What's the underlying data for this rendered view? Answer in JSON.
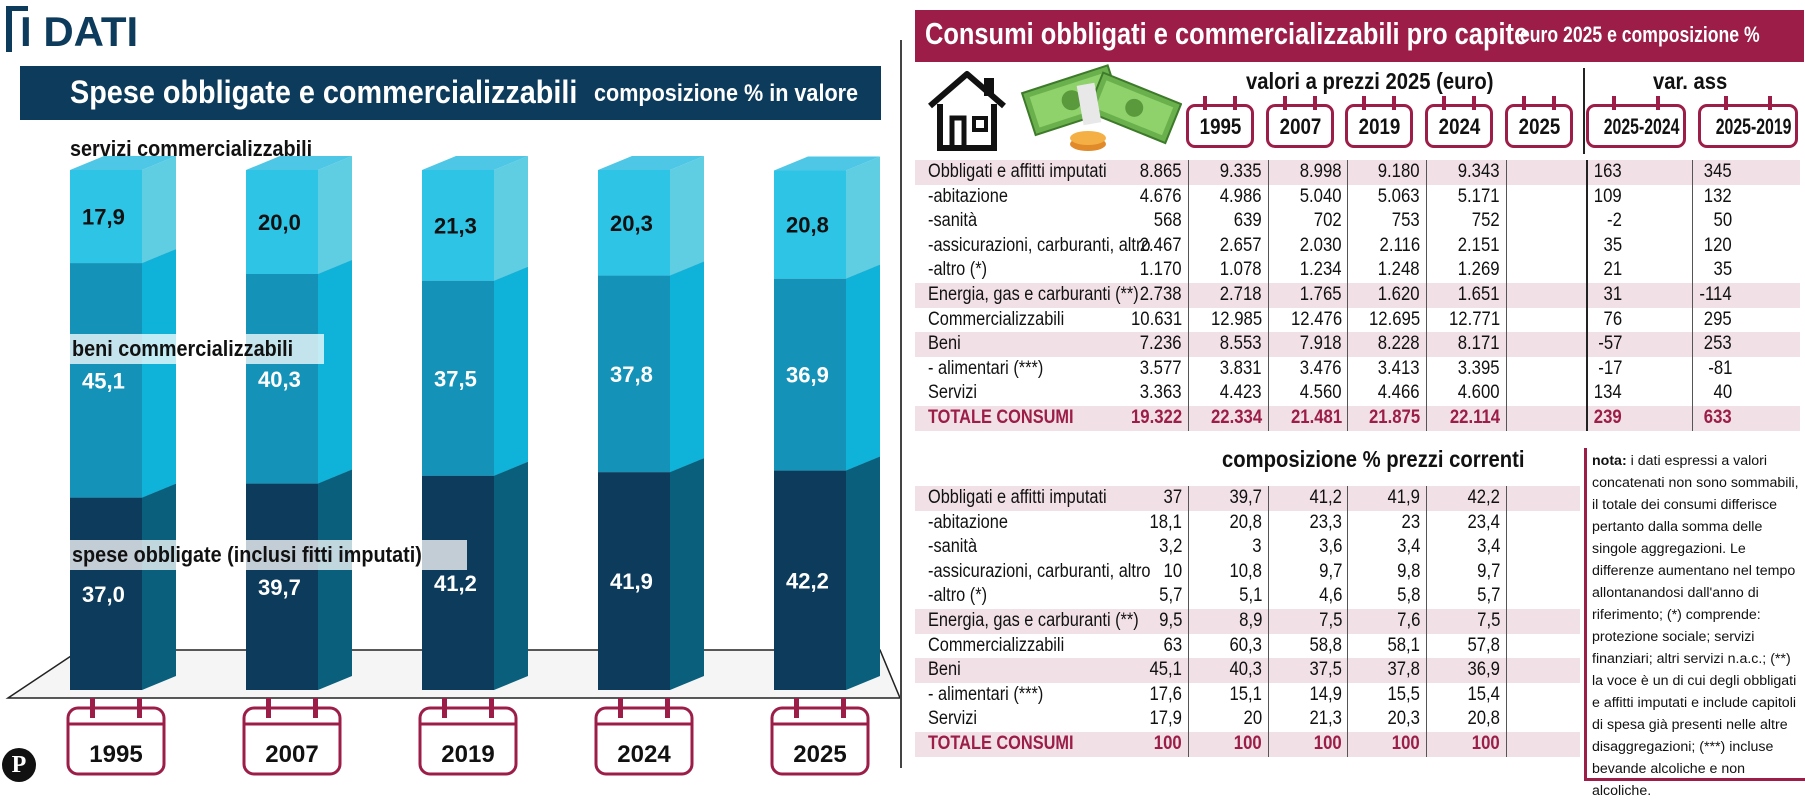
{
  "header": {
    "section": "I DATI"
  },
  "left": {
    "title": "Spese obbligate e commercializzabili",
    "subtitle": "composizione % in valore",
    "labels": {
      "services": "servizi commercializzabili",
      "goods": "beni commercializzabili",
      "obligated": "spese obbligate (inclusi fitti imputati)"
    }
  },
  "chart_data": {
    "type": "bar",
    "stacked": true,
    "categories": [
      "1995",
      "2007",
      "2019",
      "2024",
      "2025"
    ],
    "series": [
      {
        "name": "spese obbligate (inclusi fitti imputati)",
        "values": [
          37.0,
          39.7,
          41.2,
          41.9,
          42.2
        ],
        "labels": [
          "37,0",
          "39,7",
          "41,2",
          "41,9",
          "42,2"
        ],
        "color": "#0d3b5c"
      },
      {
        "name": "beni commercializzabili",
        "values": [
          45.1,
          40.3,
          37.5,
          37.8,
          36.9
        ],
        "labels": [
          "45,1",
          "40,3",
          "37,5",
          "37,8",
          "36,9"
        ],
        "color": "#1592b8"
      },
      {
        "name": "servizi commercializzabili",
        "values": [
          17.9,
          20.0,
          21.3,
          20.3,
          20.8
        ],
        "labels": [
          "17,9",
          "20,0",
          "21,3",
          "20,3",
          "20,8"
        ],
        "color": "#2ec4e6"
      }
    ],
    "ylim": [
      0,
      100
    ]
  },
  "right": {
    "title": "Consumi obbligati e commercializzabili pro capite",
    "subtitle": "euro 2025 e composizione %",
    "section1": "valori a prezzi 2025 (euro)",
    "section_var": "var. ass",
    "section2": "composizione % prezzi correnti",
    "columns": [
      "1995",
      "2007",
      "2019",
      "2024",
      "2025",
      "2025-2024",
      "2025-2019"
    ],
    "table_values": [
      {
        "label": "Obbligati e affitti imputati",
        "cells": [
          "8.865",
          "9.335",
          "8.998",
          "9.180",
          "9.343",
          "163",
          "345"
        ],
        "shaded": true
      },
      {
        "label": "-abitazione",
        "cells": [
          "4.676",
          "4.986",
          "5.040",
          "5.063",
          "5.171",
          "109",
          "132"
        ]
      },
      {
        "label": "-sanità",
        "cells": [
          "568",
          "639",
          "702",
          "753",
          "752",
          "-2",
          "50"
        ]
      },
      {
        "label": "-assicurazioni, carburanti, altro",
        "cells": [
          "2.467",
          "2.657",
          "2.030",
          "2.116",
          "2.151",
          "35",
          "120"
        ]
      },
      {
        "label": "-altro (*)",
        "cells": [
          "1.170",
          "1.078",
          "1.234",
          "1.248",
          "1.269",
          "21",
          "35"
        ]
      },
      {
        "label": "Energia, gas e carburanti (**)",
        "cells": [
          "2.738",
          "2.718",
          "1.765",
          "1.620",
          "1.651",
          "31",
          "-114"
        ],
        "shaded": true
      },
      {
        "label": "Commercializzabili",
        "cells": [
          "10.631",
          "12.985",
          "12.476",
          "12.695",
          "12.771",
          "76",
          "295"
        ]
      },
      {
        "label": "Beni",
        "cells": [
          "7.236",
          "8.553",
          "7.918",
          "8.228",
          "8.171",
          "-57",
          "253"
        ],
        "shaded": true
      },
      {
        "label": "- alimentari (***)",
        "cells": [
          "3.577",
          "3.831",
          "3.476",
          "3.413",
          "3.395",
          "-17",
          "-81"
        ]
      },
      {
        "label": "Servizi",
        "cells": [
          "3.363",
          "4.423",
          "4.560",
          "4.466",
          "4.600",
          "134",
          "40"
        ]
      },
      {
        "label": "TOTALE CONSUMI",
        "cells": [
          "19.322",
          "22.334",
          "21.481",
          "21.875",
          "22.114",
          "239",
          "633"
        ],
        "shaded": true,
        "total": true
      }
    ],
    "table_composition": [
      {
        "label": "Obbligati e affitti imputati",
        "cells": [
          "37",
          "39,7",
          "41,2",
          "41,9",
          "42,2"
        ],
        "shaded": true
      },
      {
        "label": "-abitazione",
        "cells": [
          "18,1",
          "20,8",
          "23,3",
          "23",
          "23,4"
        ]
      },
      {
        "label": "-sanità",
        "cells": [
          "3,2",
          "3",
          "3,6",
          "3,4",
          "3,4"
        ]
      },
      {
        "label": "-assicurazioni, carburanti, altro",
        "cells": [
          "10",
          "10,8",
          "9,7",
          "9,8",
          "9,7"
        ]
      },
      {
        "label": "-altro (*)",
        "cells": [
          "5,7",
          "5,1",
          "4,6",
          "5,8",
          "5,7"
        ]
      },
      {
        "label": "Energia, gas e carburanti (**)",
        "cells": [
          "9,5",
          "8,9",
          "7,5",
          "7,6",
          "7,5"
        ],
        "shaded": true
      },
      {
        "label": "Commercializzabili",
        "cells": [
          "63",
          "60,3",
          "58,8",
          "58,1",
          "57,8"
        ]
      },
      {
        "label": "Beni",
        "cells": [
          "45,1",
          "40,3",
          "37,5",
          "37,8",
          "36,9"
        ],
        "shaded": true
      },
      {
        "label": "- alimentari (***)",
        "cells": [
          "17,6",
          "15,1",
          "14,9",
          "15,5",
          "15,4"
        ]
      },
      {
        "label": "Servizi",
        "cells": [
          "17,9",
          "20",
          "21,3",
          "20,3",
          "20,8"
        ]
      },
      {
        "label": "TOTALE CONSUMI",
        "cells": [
          "100",
          "100",
          "100",
          "100",
          "100"
        ],
        "shaded": true,
        "total": true
      }
    ],
    "note_title": "nota:",
    "note": "i dati espressi a valori concatenati non sono sommabili, il totale dei consumi differisce pertanto dalla somma delle singole aggregazioni. Le differenze aumentano nel tempo allontanandosi dall'anno di riferimento; (*) comprende: protezione sociale; servizi finanziari; altri servizi n.a.c.; (**) la voce è un di cui degli obbligati e affitti imputati e include capitoli di spesa già presenti nelle altre disaggregazioni; (***) incluse bevande alcoliche e non alcoliche."
  },
  "footer": {
    "logo": "P"
  },
  "colors": {
    "navy": "#0d3b5c",
    "mid": "#1592b8",
    "light": "#2ec4e6",
    "accent": "#9b1d48",
    "shade": "#f1e1e6"
  }
}
